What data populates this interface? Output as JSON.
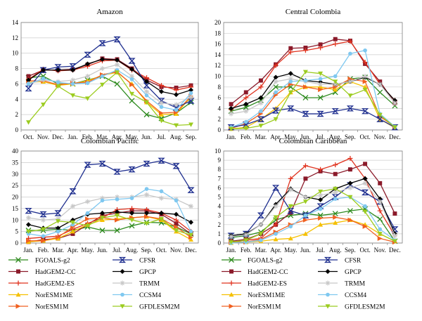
{
  "colors": {
    "FGOALS-g2": "#2e8b1f",
    "HadGEM2-CC": "#8b1a2a",
    "HadGEM2-ES": "#e0331f",
    "NorESM1ME": "#f5c000",
    "NorESM1M": "#f06020",
    "CFSR": "#1f2f8f",
    "GPCP": "#000000",
    "TRMM": "#c8c8c8",
    "CCSM4": "#7fc8f0",
    "GFDLESM2M": "#9ccc20"
  },
  "legend": {
    "left": [
      {
        "series": "FGOALS-g2",
        "label": "FGOALS-g2",
        "marker": "x"
      },
      {
        "series": "HadGEM2-CC",
        "label": "HadGEM2-CC",
        "marker": "square"
      },
      {
        "series": "HadGEM2-ES",
        "label": "HadGEM2-ES",
        "marker": "plus"
      },
      {
        "series": "NorESM1ME",
        "label": "NorESM1ME",
        "marker": "triangle"
      },
      {
        "series": "NorESM1M",
        "label": "NorESM1M",
        "marker": "tri-right"
      }
    ],
    "right": [
      {
        "series": "CFSR",
        "label": "CFSR",
        "marker": "hourglass"
      },
      {
        "series": "GPCP",
        "label": "GPCP",
        "marker": "diamond"
      },
      {
        "series": "TRMM",
        "label": "TRMM",
        "marker": "star"
      },
      {
        "series": "CCSM4",
        "label": "CCSM4",
        "marker": "circle"
      },
      {
        "series": "GFDLESM2M",
        "label": "GFDLESM2M",
        "marker": "tri-down"
      }
    ]
  },
  "chart_data": [
    {
      "type": "line",
      "title": "Amazon",
      "categories": [
        "Oct.",
        "Nov.",
        "Dec.",
        "Jan.",
        "Feb.",
        "Mar.",
        "Apr.",
        "May.",
        "Jun.",
        "Jul.",
        "Aug.",
        "Sep."
      ],
      "ylim": [
        0,
        14
      ],
      "yticks": [
        0,
        2,
        4,
        6,
        8,
        10,
        12,
        14
      ],
      "series": [
        {
          "name": "FGOALS-g2",
          "values": [
            6.8,
            7.0,
            6.0,
            6.0,
            6.5,
            7.0,
            6.0,
            3.8,
            2.0,
            1.5,
            2.2,
            3.6
          ]
        },
        {
          "name": "HadGEM2-CC",
          "values": [
            7.0,
            7.8,
            7.8,
            7.9,
            8.5,
            9.3,
            9.2,
            8.0,
            6.5,
            5.6,
            5.5,
            5.8
          ]
        },
        {
          "name": "HadGEM2-ES",
          "values": [
            6.6,
            7.9,
            7.7,
            7.8,
            8.3,
            9.0,
            9.1,
            7.8,
            6.8,
            5.8,
            5.2,
            5.6
          ]
        },
        {
          "name": "NorESM1ME",
          "values": [
            6.2,
            6.3,
            5.8,
            6.0,
            6.4,
            7.1,
            7.5,
            6.0,
            3.6,
            2.0,
            2.1,
            4.3
          ]
        },
        {
          "name": "NorESM1M",
          "values": [
            6.4,
            6.4,
            5.9,
            6.1,
            6.2,
            7.2,
            7.6,
            5.9,
            3.8,
            2.2,
            2.3,
            4.4
          ]
        },
        {
          "name": "CFSR",
          "values": [
            5.4,
            7.8,
            8.2,
            8.3,
            9.8,
            11.3,
            11.8,
            9.0,
            5.8,
            3.8,
            2.9,
            3.8
          ]
        },
        {
          "name": "GPCP",
          "values": [
            6.5,
            7.8,
            7.8,
            7.8,
            8.6,
            9.2,
            9.1,
            7.9,
            6.3,
            5.0,
            4.6,
            5.2
          ]
        },
        {
          "name": "TRMM",
          "values": [
            6.0,
            6.5,
            6.3,
            6.5,
            7.0,
            8.0,
            8.5,
            7.0,
            5.0,
            3.5,
            3.3,
            4.3
          ]
        },
        {
          "name": "CCSM4",
          "values": [
            6.0,
            6.7,
            6.2,
            6.0,
            6.1,
            7.0,
            7.8,
            6.6,
            4.5,
            3.0,
            2.6,
            4.8
          ]
        },
        {
          "name": "GFDLESM2M",
          "values": [
            1.0,
            3.3,
            5.7,
            4.5,
            4.1,
            5.9,
            7.5,
            4.7,
            3.6,
            1.2,
            0.6,
            0.7
          ]
        }
      ]
    },
    {
      "type": "line",
      "title": "Central Colombia",
      "categories": [
        "Jan.",
        "Feb.",
        "Mar.",
        "Apr.",
        "May.",
        "Jun.",
        "Jul.",
        "Aug.",
        "Sep.",
        "Oct.",
        "Nov.",
        "Dec."
      ],
      "ylim": [
        0,
        20
      ],
      "yticks": [
        0,
        2,
        4,
        6,
        8,
        10,
        12,
        14,
        16,
        18,
        20
      ],
      "series": [
        {
          "name": "FGOALS-g2",
          "values": [
            3.5,
            4.2,
            5.5,
            8.0,
            8.0,
            6.0,
            6.0,
            7.0,
            9.5,
            9.8,
            7.0,
            4.5
          ]
        },
        {
          "name": "HadGEM2-CC",
          "values": [
            4.8,
            7.0,
            9.2,
            12.2,
            15.2,
            15.3,
            15.9,
            16.9,
            16.6,
            12.3,
            9.0,
            5.0
          ]
        },
        {
          "name": "HadGEM2-ES",
          "values": [
            3.8,
            6.0,
            8.0,
            12.0,
            14.5,
            14.8,
            15.3,
            16.0,
            16.5,
            12.6,
            8.5,
            5.5
          ]
        },
        {
          "name": "NorESM1ME",
          "values": [
            0.2,
            0.5,
            2.0,
            4.0,
            7.0,
            8.0,
            8.0,
            7.5,
            9.0,
            8.0,
            2.0,
            0.4
          ]
        },
        {
          "name": "NorESM1M",
          "values": [
            0.3,
            1.2,
            3.0,
            6.5,
            8.5,
            8.0,
            7.5,
            8.0,
            9.5,
            9.0,
            2.5,
            0.6
          ]
        },
        {
          "name": "CFSR",
          "values": [
            0.5,
            1.0,
            2.0,
            3.6,
            4.0,
            3.0,
            3.0,
            3.5,
            4.0,
            3.5,
            2.0,
            0.5
          ]
        },
        {
          "name": "GPCP",
          "values": [
            4.0,
            4.8,
            6.0,
            9.8,
            10.5,
            9.2,
            8.9,
            8.5,
            9.0,
            9.8,
            8.5,
            5.5
          ]
        },
        {
          "name": "TRMM",
          "values": [
            3.0,
            3.5,
            5.0,
            9.0,
            9.5,
            9.0,
            8.5,
            8.5,
            9.0,
            10.0,
            8.5,
            5.0
          ]
        },
        {
          "name": "CCSM4",
          "values": [
            0.5,
            1.5,
            3.5,
            7.0,
            9.0,
            9.2,
            9.5,
            10.0,
            14.2,
            14.8,
            3.0,
            0.6
          ]
        },
        {
          "name": "GFDLESM2M",
          "values": [
            0.2,
            0.3,
            0.8,
            2.0,
            7.0,
            10.8,
            10.5,
            9.0,
            6.4,
            7.5,
            2.8,
            0.5
          ]
        }
      ]
    },
    {
      "type": "line",
      "title": "Colombian Pacific",
      "categories": [
        "Jan.",
        "Feb.",
        "Mar.",
        "Apr.",
        "May.",
        "Jun.",
        "Jul.",
        "Aug.",
        "Sep.",
        "Oct.",
        "Nov.",
        "Dec."
      ],
      "ylim": [
        0,
        40
      ],
      "yticks": [
        0,
        5,
        10,
        15,
        20,
        25,
        30,
        35,
        40
      ],
      "series": [
        {
          "name": "FGOALS-g2",
          "values": [
            5.5,
            5.5,
            6.0,
            5.5,
            7.0,
            5.5,
            5.5,
            7.5,
            9.0,
            8.8,
            7.0,
            4.0
          ]
        },
        {
          "name": "HadGEM2-CC",
          "values": [
            0.5,
            1.5,
            2.0,
            4.0,
            8.0,
            12.0,
            13.0,
            14.0,
            14.0,
            12.5,
            8.5,
            4.0
          ]
        },
        {
          "name": "HadGEM2-ES",
          "values": [
            2.0,
            2.5,
            3.0,
            6.0,
            8.5,
            11.0,
            14.5,
            15.0,
            14.5,
            13.0,
            10.0,
            5.0
          ]
        },
        {
          "name": "NorESM1ME",
          "values": [
            0.5,
            1.0,
            2.0,
            5.0,
            8.0,
            10.0,
            10.5,
            11.0,
            11.5,
            10.0,
            5.0,
            1.5
          ]
        },
        {
          "name": "NorESM1M",
          "values": [
            1.0,
            1.0,
            2.5,
            7.0,
            10.5,
            11.0,
            10.0,
            11.0,
            11.5,
            10.5,
            7.0,
            2.5
          ]
        },
        {
          "name": "CFSR",
          "values": [
            14.0,
            12.5,
            13.0,
            22.5,
            34.0,
            34.5,
            31.0,
            32.0,
            34.5,
            35.8,
            33.5,
            23.0
          ]
        },
        {
          "name": "GPCP",
          "values": [
            8.0,
            6.5,
            6.5,
            10.0,
            12.5,
            13.0,
            13.5,
            13.0,
            13.0,
            13.0,
            12.5,
            9.0
          ]
        },
        {
          "name": "TRMM",
          "values": [
            11.0,
            10.0,
            10.5,
            16.0,
            18.0,
            19.5,
            20.0,
            20.0,
            21.0,
            19.5,
            19.0,
            16.0
          ]
        },
        {
          "name": "CCSM4",
          "values": [
            4.0,
            3.0,
            5.0,
            8.0,
            13.0,
            18.5,
            19.0,
            19.5,
            23.5,
            22.5,
            18.5,
            5.0
          ]
        },
        {
          "name": "GFDLESM2M",
          "values": [
            5.0,
            6.0,
            9.5,
            9.0,
            7.5,
            11.0,
            12.0,
            10.0,
            8.5,
            10.5,
            5.5,
            3.5
          ]
        }
      ]
    },
    {
      "type": "line",
      "title": "Colombian Caribbean",
      "categories": [
        "Jan.",
        "Feb.",
        "Mar.",
        "Apr.",
        "May.",
        "Jun.",
        "Jul.",
        "Aug.",
        "Sep.",
        "Oct.",
        "Nov.",
        "Dec."
      ],
      "ylim": [
        0,
        10
      ],
      "yticks": [
        0,
        1,
        2,
        3,
        4,
        5,
        6,
        7,
        8,
        9,
        10
      ],
      "series": [
        {
          "name": "FGOALS-g2",
          "values": [
            0.6,
            0.8,
            1.2,
            2.5,
            3.0,
            3.2,
            3.0,
            3.2,
            3.5,
            3.7,
            2.6,
            0.2
          ]
        },
        {
          "name": "HadGEM2-CC",
          "values": [
            0.2,
            0.4,
            1.0,
            2.0,
            3.3,
            7.0,
            7.8,
            7.5,
            8.0,
            8.6,
            6.5,
            3.2
          ]
        },
        {
          "name": "HadGEM2-ES",
          "values": [
            0.1,
            0.3,
            0.5,
            2.0,
            7.0,
            8.4,
            8.0,
            8.5,
            9.2,
            7.0,
            3.5,
            0.8
          ]
        },
        {
          "name": "NorESM1ME",
          "values": [
            0.0,
            0.1,
            0.2,
            0.4,
            0.5,
            1.0,
            2.0,
            2.2,
            2.5,
            2.0,
            1.0,
            0.2
          ]
        },
        {
          "name": "NorESM1M",
          "values": [
            0.1,
            0.1,
            0.4,
            1.2,
            2.0,
            2.5,
            2.7,
            2.8,
            2.5,
            1.8,
            0.5,
            0.1
          ]
        },
        {
          "name": "CFSR",
          "values": [
            0.8,
            1.0,
            3.0,
            6.0,
            3.5,
            3.0,
            4.0,
            5.0,
            6.3,
            5.5,
            4.5,
            1.5
          ]
        },
        {
          "name": "GPCP",
          "values": [
            0.8,
            1.0,
            2.0,
            4.2,
            5.9,
            5.0,
            4.7,
            5.9,
            6.5,
            7.0,
            4.8,
            1.0
          ]
        },
        {
          "name": "TRMM",
          "values": [
            0.7,
            0.9,
            2.0,
            4.0,
            5.8,
            5.0,
            5.2,
            5.5,
            6.0,
            6.5,
            4.5,
            0.8
          ]
        },
        {
          "name": "CCSM4",
          "values": [
            0.0,
            0.1,
            0.3,
            1.0,
            1.8,
            3.0,
            3.7,
            4.8,
            5.0,
            4.0,
            1.5,
            0.3
          ]
        },
        {
          "name": "GFDLESM2M",
          "values": [
            0.1,
            0.3,
            1.0,
            2.8,
            4.0,
            4.5,
            5.6,
            5.9,
            5.0,
            3.4,
            1.0,
            0.2
          ]
        }
      ]
    }
  ]
}
